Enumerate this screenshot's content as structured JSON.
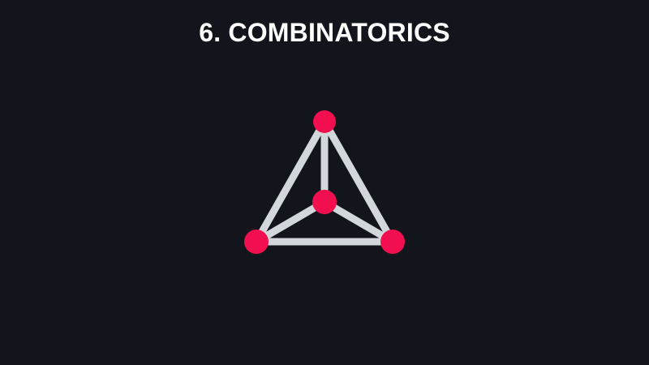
{
  "slide": {
    "title": "6. COMBINATORICS"
  },
  "graph": {
    "node_color": "#f20f4f",
    "edge_color": "#d1d7db",
    "nodes": [
      "top",
      "center",
      "left",
      "right"
    ],
    "edges": [
      [
        "top",
        "center"
      ],
      [
        "top",
        "left"
      ],
      [
        "top",
        "right"
      ],
      [
        "center",
        "left"
      ],
      [
        "center",
        "right"
      ],
      [
        "left",
        "right"
      ]
    ]
  }
}
